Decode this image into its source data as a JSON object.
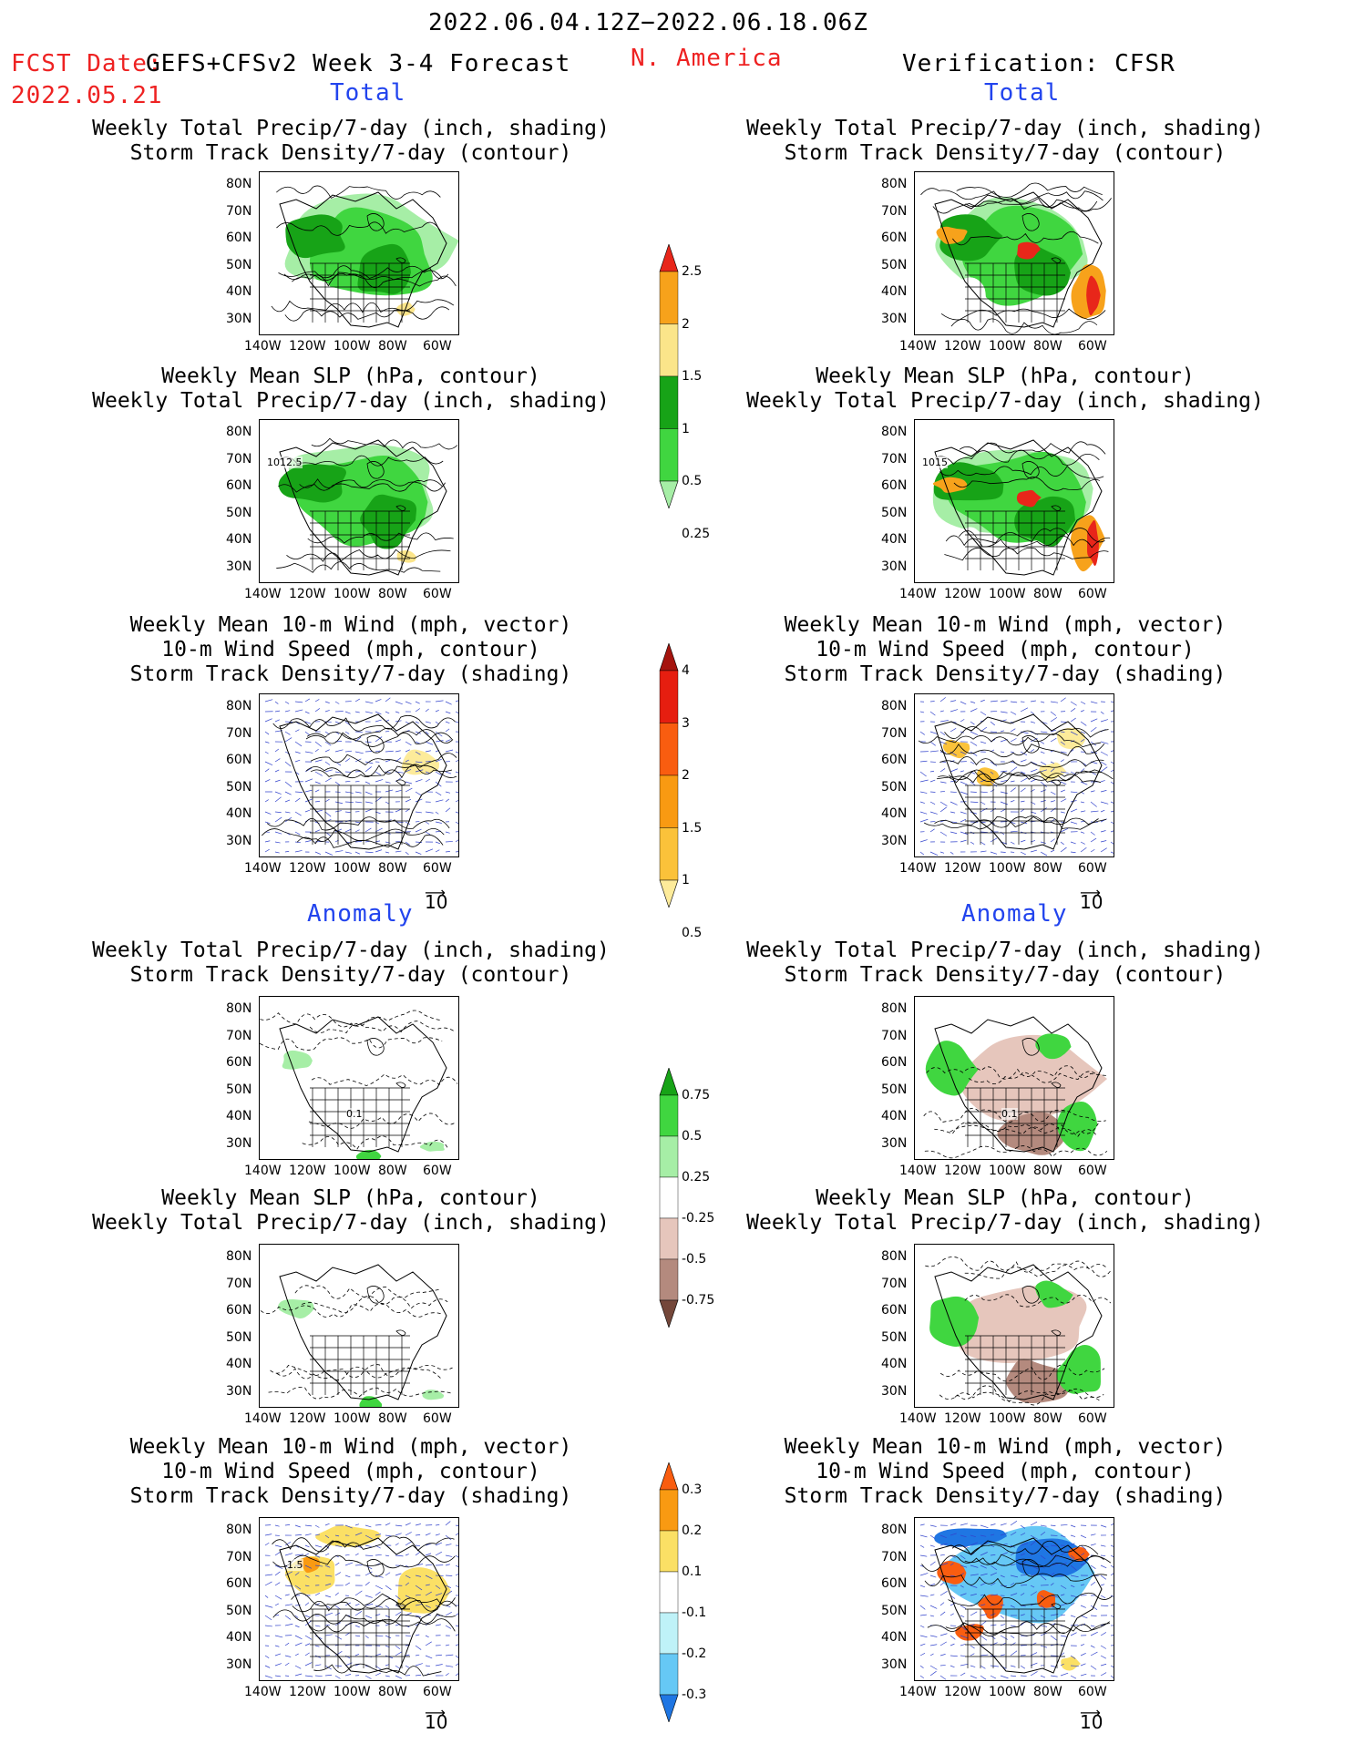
{
  "header": {
    "date_range": "2022.06.04.12Z−2022.06.18.06Z",
    "fcst_label": "FCST Date:",
    "fcst_title": "GEFS+CFSv2 Week 3-4 Forecast",
    "fcst_date": "2022.05.21",
    "region": "N. America",
    "verification": "Verification: CFSR"
  },
  "sections": {
    "total": "Total",
    "anomaly": "Anomaly"
  },
  "panel_titles": {
    "precip_track": [
      "Weekly Total Precip/7-day (inch, shading)",
      "Storm Track Density/7-day (contour)"
    ],
    "slp_precip": [
      "Weekly Mean SLP (hPa, contour)",
      "Weekly Total Precip/7-day (inch, shading)"
    ],
    "wind_track": [
      "Weekly Mean 10-m Wind (mph, vector)",
      "10-m Wind Speed (mph, contour)",
      "Storm Track Density/7-day (shading)"
    ]
  },
  "axes": {
    "lat_ticks": [
      "80N",
      "70N",
      "60N",
      "50N",
      "40N",
      "30N"
    ],
    "lon_ticks": [
      "140W",
      "120W",
      "100W",
      "80W",
      "60W"
    ]
  },
  "contour_labels": {
    "slp_fcst": "1012.5",
    "slp_cfsr": "1015",
    "anom_fcst": "0.1",
    "anom_cfsr": "0.1",
    "wind_anom_fcst": "1.5"
  },
  "vector_reference": "10",
  "colorbars": [
    {
      "id": "precip-total",
      "labels": [
        "2.5",
        "2",
        "1.5",
        "1",
        "0.5",
        "0.25"
      ],
      "colors": [
        "#e8261a",
        "#f7a21b",
        "#fbe58a",
        "#17a317",
        "#40d640",
        "#a6eea6"
      ]
    },
    {
      "id": "track-total",
      "labels": [
        "4",
        "3",
        "2",
        "1.5",
        "1",
        "0.5"
      ],
      "colors": [
        "#a5140e",
        "#e61e10",
        "#f95d10",
        "#f99a12",
        "#fbc23a",
        "#fdeb9a"
      ]
    },
    {
      "id": "precip-anom",
      "labels": [
        "0.75",
        "0.5",
        "0.25",
        "-0.25",
        "-0.5",
        "-0.75"
      ],
      "colors": [
        "#17a317",
        "#40d640",
        "#a6eea6",
        "#ffffff",
        "#e6c6bc",
        "#b48a7e",
        "#74473a"
      ]
    },
    {
      "id": "track-anom",
      "labels": [
        "0.3",
        "0.2",
        "0.1",
        "-0.1",
        "-0.2",
        "-0.3"
      ],
      "colors": [
        "#f95d10",
        "#f99a12",
        "#fbe065",
        "#ffffff",
        "#bff2f8",
        "#66c8f5",
        "#1f76e3"
      ]
    }
  ]
}
